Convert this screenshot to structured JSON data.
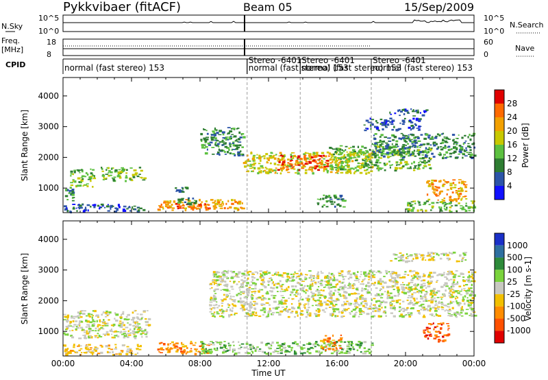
{
  "header": {
    "radar": "Pykkvibaer (fitACF)",
    "beam": "Beam 05",
    "date": "15/Sep/2009"
  },
  "nsky_panel": {
    "left_label": "N.Sky",
    "right_label": "N.Search",
    "ticks": [
      "10^5",
      "10^0"
    ],
    "right_ticks": [
      "10^5",
      "10^0"
    ]
  },
  "freq_panel": {
    "left_label_1": "Freq.",
    "left_label_2": "[MHz]",
    "ticks": [
      "18",
      "8"
    ],
    "right_label": "Nave",
    "right_ticks": [
      "60",
      "0"
    ]
  },
  "cpid": {
    "label": "CPID",
    "segments": [
      {
        "start_hour": 0.0,
        "label": "normal (fast stereo) 153"
      },
      {
        "start_hour": 10.75,
        "label": "Stereo -6401"
      },
      {
        "start_hour": 10.75,
        "label": "normal (fast stereo) 153"
      },
      {
        "start_hour": 13.85,
        "label": "Stereo -6401"
      },
      {
        "start_hour": 13.85,
        "label": "normal (fast stereo) 153"
      },
      {
        "start_hour": 18.0,
        "label": "Stereo -6401"
      },
      {
        "start_hour": 18.0,
        "label": "normal (fast stereo) 153"
      }
    ]
  },
  "chart_data": [
    {
      "type": "heatmap",
      "name": "Power",
      "ylabel": "Slant Range [km]",
      "yticks": [
        1000,
        2000,
        3000,
        4000
      ],
      "ylim": [
        200,
        4600
      ],
      "xlim": [
        0,
        24
      ],
      "colorbar": {
        "label": "Power [dB]",
        "ticks": [
          "28",
          "24",
          "20",
          "16",
          "12",
          "8",
          "4"
        ],
        "colors": [
          "#e00000",
          "#ff6a00",
          "#f2a000",
          "#c8c800",
          "#5cc040",
          "#2e7d32",
          "#2c54a8",
          "#1010ff"
        ]
      },
      "regions": [
        {
          "t0": 0.1,
          "t1": 0.6,
          "r0": 600,
          "r1": 1100,
          "level": 2
        },
        {
          "t0": 0.4,
          "t1": 1.8,
          "r0": 1050,
          "r1": 1650,
          "level": 3
        },
        {
          "t0": 2.2,
          "t1": 4.7,
          "r0": 1250,
          "r1": 1700,
          "level": 3
        },
        {
          "t0": 0.0,
          "t1": 4.8,
          "r0": 250,
          "r1": 500,
          "level": 1
        },
        {
          "t0": 5.5,
          "t1": 10.5,
          "r0": 300,
          "r1": 650,
          "level": 5
        },
        {
          "t0": 6.5,
          "t1": 8.5,
          "r0": 320,
          "r1": 520,
          "level": 6
        },
        {
          "t0": 6.5,
          "t1": 7.3,
          "r0": 900,
          "r1": 1050,
          "level": 2
        },
        {
          "t0": 6.6,
          "t1": 7.8,
          "r0": 500,
          "r1": 700,
          "level": 2
        },
        {
          "t0": 8.0,
          "t1": 10.5,
          "r0": 2100,
          "r1": 3000,
          "level": 2
        },
        {
          "t0": 10.5,
          "t1": 18.0,
          "r0": 1500,
          "r1": 2200,
          "level": 4
        },
        {
          "t0": 12.5,
          "t1": 15.5,
          "r0": 1600,
          "r1": 2100,
          "level": 6
        },
        {
          "t0": 15.5,
          "t1": 21.5,
          "r0": 1600,
          "r1": 2400,
          "level": 3
        },
        {
          "t0": 18.0,
          "t1": 24.0,
          "r0": 2000,
          "r1": 2800,
          "level": 2
        },
        {
          "t0": 17.5,
          "t1": 20.8,
          "r0": 2900,
          "r1": 3300,
          "level": 1
        },
        {
          "t0": 19.0,
          "t1": 21.2,
          "r0": 3350,
          "r1": 3600,
          "level": 1
        },
        {
          "t0": 21.2,
          "t1": 23.5,
          "r0": 600,
          "r1": 1300,
          "level": 5
        },
        {
          "t0": 20.0,
          "t1": 24.0,
          "r0": 250,
          "r1": 600,
          "level": 3
        },
        {
          "t0": 14.8,
          "t1": 16.5,
          "r0": 400,
          "r1": 800,
          "level": 2
        }
      ]
    },
    {
      "type": "heatmap",
      "name": "Velocity",
      "ylabel": "Slant Range [km]",
      "xlabel": "Time UT",
      "xticks": [
        "00:00",
        "04:00",
        "08:00",
        "12:00",
        "16:00",
        "20:00",
        "00:00"
      ],
      "yticks": [
        1000,
        2000,
        3000,
        4000
      ],
      "ylim": [
        200,
        4600
      ],
      "xlim": [
        0,
        24
      ],
      "colorbar": {
        "label": "Velocity [m s-1]",
        "ticks": [
          "1000",
          "500",
          "100",
          "25",
          "-25",
          "-100",
          "-500",
          "-1000"
        ],
        "colors": [
          "#1a30c8",
          "#2e6fa0",
          "#2e8b3a",
          "#7ad33c",
          "#c8c8c0",
          "#f2c000",
          "#ff8c00",
          "#ff5000",
          "#e00000"
        ]
      },
      "regions": [
        {
          "t0": 0.0,
          "t1": 5.0,
          "r0": 800,
          "r1": 1700,
          "level": 4
        },
        {
          "t0": 0.0,
          "t1": 4.5,
          "r0": 250,
          "r1": 600,
          "level": 5
        },
        {
          "t0": 5.5,
          "t1": 8.5,
          "r0": 300,
          "r1": 700,
          "level": 6
        },
        {
          "t0": 8.5,
          "t1": 24.0,
          "r0": 1500,
          "r1": 3000,
          "level": 4
        },
        {
          "t0": 8.0,
          "t1": 18.0,
          "r0": 300,
          "r1": 700,
          "level": 3
        },
        {
          "t0": 21.0,
          "t1": 22.5,
          "r0": 700,
          "r1": 1300,
          "level": 7
        },
        {
          "t0": 15.0,
          "t1": 16.2,
          "r0": 400,
          "r1": 900,
          "level": 6
        },
        {
          "t0": 19.0,
          "t1": 23.5,
          "r0": 3300,
          "r1": 3600,
          "level": 4
        }
      ]
    }
  ],
  "xaxis": {
    "label": "Time UT",
    "ticks": [
      "00:00",
      "04:00",
      "08:00",
      "12:00",
      "16:00",
      "20:00",
      "00:00"
    ]
  }
}
